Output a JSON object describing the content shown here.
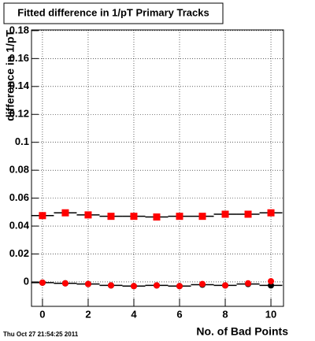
{
  "chart_data": {
    "type": "scatter",
    "title": "Fitted difference in 1/pT Primary Tracks",
    "x_label": "No. of Bad Points",
    "y_label": "difference in 1/pT",
    "timestamp": "Thu Oct 27 21:54:25 2011",
    "x": [
      0,
      1,
      2,
      3,
      4,
      5,
      6,
      7,
      8,
      9,
      10
    ],
    "series": [
      {
        "marker": "step",
        "color": "#000000",
        "values": [
          0.0475,
          0.0495,
          0.048,
          0.047,
          0.047,
          0.0465,
          0.047,
          0.047,
          0.0485,
          0.0485,
          0.0495
        ]
      },
      {
        "marker": "square",
        "color": "#ff0000",
        "values": [
          0.0475,
          0.0495,
          0.048,
          0.047,
          0.047,
          0.0465,
          0.047,
          0.047,
          0.0485,
          0.0485,
          0.0495
        ]
      },
      {
        "marker": "step",
        "color": "#000000",
        "values": [
          -0.0005,
          -0.001,
          -0.0015,
          -0.0025,
          -0.003,
          -0.0025,
          -0.003,
          -0.002,
          -0.0025,
          -0.0015,
          -0.0025
        ]
      },
      {
        "marker": "circle",
        "color": "#000000",
        "values": [
          -0.0005,
          -0.001,
          -0.0015,
          -0.0025,
          -0.003,
          -0.0025,
          -0.003,
          -0.002,
          -0.0025,
          -0.0015,
          -0.0025
        ]
      },
      {
        "marker": "circle",
        "color": "#ff0000",
        "values": [
          -0.0005,
          -0.001,
          -0.0015,
          -0.0025,
          -0.003,
          -0.0025,
          -0.003,
          -0.0015,
          -0.0025,
          -0.001,
          0.0005
        ]
      }
    ],
    "xlim": [
      -0.48,
      10.55
    ],
    "ylim": [
      -0.0175,
      0.1805
    ],
    "xticks": [
      0,
      2,
      4,
      6,
      8,
      10
    ],
    "yticks": [
      0,
      0.02,
      0.04,
      0.06,
      0.08,
      0.1,
      0.12,
      0.14,
      0.16,
      0.18
    ],
    "grid": true
  }
}
